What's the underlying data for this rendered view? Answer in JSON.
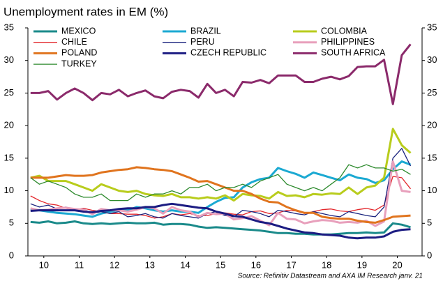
{
  "chart_data": {
    "type": "line",
    "title": "Unemployment rates in EM (%)",
    "source": "Source: Refinitiv Datastream and AXA IM Research janv. 21",
    "x": [
      2010.125,
      2010.375,
      2010.625,
      2010.875,
      2011.125,
      2011.375,
      2011.625,
      2011.875,
      2012.125,
      2012.375,
      2012.625,
      2012.875,
      2013.125,
      2013.375,
      2013.625,
      2013.875,
      2014.125,
      2014.375,
      2014.625,
      2014.875,
      2015.125,
      2015.375,
      2015.625,
      2015.875,
      2016.125,
      2016.375,
      2016.625,
      2016.875,
      2017.125,
      2017.375,
      2017.625,
      2017.875,
      2018.125,
      2018.375,
      2018.625,
      2018.875,
      2019.125,
      2019.375,
      2019.625,
      2019.875,
      2020.125,
      2020.375,
      2020.625,
      2020.875
    ],
    "xlim": [
      2010.05,
      2021.2
    ],
    "xticks": [
      {
        "value": 2010.5,
        "label": "10"
      },
      {
        "value": 2011.5,
        "label": "11"
      },
      {
        "value": 2012.5,
        "label": "12"
      },
      {
        "value": 2013.5,
        "label": "13"
      },
      {
        "value": 2014.5,
        "label": "14"
      },
      {
        "value": 2015.5,
        "label": "15"
      },
      {
        "value": 2016.5,
        "label": "16"
      },
      {
        "value": 2017.5,
        "label": "17"
      },
      {
        "value": 2018.5,
        "label": "18"
      },
      {
        "value": 2019.5,
        "label": "19"
      },
      {
        "value": 2020.5,
        "label": "20"
      }
    ],
    "ylim": [
      0,
      35
    ],
    "yticks": [
      0,
      5,
      10,
      15,
      20,
      25,
      30,
      35
    ],
    "y2lim": [
      0,
      35
    ],
    "y2ticks": [
      0,
      5,
      10,
      15,
      20,
      25,
      30,
      35
    ],
    "series": [
      {
        "name": "MEXICO",
        "color": "#1a8a8a",
        "line_width": 3,
        "values": [
          5.2,
          5.1,
          5.3,
          5.0,
          5.1,
          5.3,
          5.0,
          4.9,
          5.0,
          4.9,
          5.0,
          5.1,
          5.0,
          5.0,
          5.1,
          4.8,
          4.9,
          4.9,
          4.8,
          4.5,
          4.3,
          4.4,
          4.3,
          4.2,
          4.1,
          4.0,
          3.9,
          3.7,
          3.5,
          3.5,
          3.4,
          3.4,
          3.3,
          3.3,
          3.3,
          3.4,
          3.5,
          3.5,
          3.6,
          3.5,
          3.6,
          5.0,
          4.8,
          4.4
        ]
      },
      {
        "name": "BRAZIL",
        "color": "#1ba9d2",
        "line_width": 3,
        "values": [
          7.2,
          7.0,
          6.8,
          6.6,
          6.5,
          6.4,
          6.2,
          6.0,
          6.5,
          6.8,
          7.0,
          7.0,
          7.5,
          7.3,
          7.0,
          6.8,
          7.0,
          6.8,
          6.8,
          6.6,
          7.5,
          8.3,
          8.9,
          9.0,
          10.5,
          11.3,
          11.8,
          12.0,
          13.5,
          13.0,
          12.6,
          12.0,
          12.8,
          12.4,
          12.0,
          11.6,
          12.5,
          12.0,
          11.8,
          11.2,
          11.6,
          13.3,
          14.5,
          14.0
        ]
      },
      {
        "name": "COLOMBIA",
        "color": "#b8cc1c",
        "line_width": 3,
        "values": [
          12.0,
          12.3,
          11.5,
          11.5,
          11.5,
          11.0,
          10.5,
          10.0,
          11.0,
          10.5,
          10.0,
          9.8,
          10.0,
          9.5,
          9.3,
          9.2,
          9.5,
          9.0,
          9.0,
          8.8,
          9.0,
          8.8,
          9.3,
          8.5,
          9.5,
          9.3,
          9.2,
          8.8,
          9.8,
          9.2,
          9.3,
          9.0,
          9.5,
          9.4,
          9.6,
          9.5,
          10.5,
          9.5,
          10.5,
          10.8,
          12.0,
          19.5,
          17.0,
          15.8
        ]
      },
      {
        "name": "CHILE",
        "color": "#e3262b",
        "line_width": 1.3,
        "values": [
          9.2,
          8.5,
          8.0,
          7.8,
          7.3,
          7.1,
          7.3,
          7.0,
          6.8,
          6.5,
          6.5,
          6.4,
          6.4,
          6.2,
          5.8,
          6.0,
          6.5,
          6.3,
          6.5,
          6.2,
          6.2,
          6.5,
          6.6,
          6.4,
          6.3,
          6.8,
          6.9,
          6.5,
          6.6,
          7.0,
          6.9,
          6.5,
          6.8,
          7.1,
          7.2,
          6.9,
          6.8,
          7.1,
          7.3,
          7.0,
          7.8,
          12.2,
          12.0,
          10.3
        ]
      },
      {
        "name": "PERU",
        "color": "#1a237e",
        "line_width": 1.3,
        "values": [
          8.0,
          7.5,
          7.8,
          7.2,
          7.5,
          7.0,
          7.2,
          6.5,
          6.8,
          6.5,
          6.8,
          6.0,
          6.2,
          6.5,
          6.0,
          5.8,
          6.5,
          6.2,
          6.0,
          5.8,
          6.5,
          6.8,
          6.2,
          6.0,
          7.0,
          6.8,
          6.5,
          6.0,
          7.0,
          6.8,
          6.5,
          6.3,
          6.8,
          6.5,
          6.2,
          6.0,
          6.8,
          6.5,
          6.2,
          6.0,
          7.5,
          15.0,
          16.5,
          13.8
        ]
      },
      {
        "name": "PHILIPPINES",
        "color": "#e8a0bc",
        "line_width": 3,
        "values": [
          7.3,
          7.0,
          7.1,
          7.3,
          7.4,
          7.2,
          7.1,
          6.4,
          7.2,
          7.0,
          7.0,
          6.8,
          7.1,
          7.5,
          7.3,
          6.5,
          7.5,
          7.0,
          6.8,
          6.0,
          6.6,
          6.4,
          6.5,
          5.6,
          5.8,
          6.1,
          5.4,
          4.7,
          6.6,
          5.7,
          5.6,
          5.0,
          5.3,
          5.5,
          5.4,
          5.1,
          5.2,
          5.1,
          5.4,
          4.6,
          5.3,
          14.5,
          10.0,
          9.8
        ]
      },
      {
        "name": "POLAND",
        "color": "#e0741e",
        "line_width": 3,
        "values": [
          12.0,
          12.0,
          12.0,
          12.2,
          12.4,
          12.3,
          12.3,
          12.4,
          12.8,
          13.0,
          13.2,
          13.3,
          13.6,
          13.5,
          13.3,
          13.2,
          13.0,
          12.5,
          12.0,
          11.4,
          11.5,
          11.0,
          10.5,
          10.0,
          10.0,
          9.5,
          8.8,
          8.3,
          8.2,
          7.5,
          7.0,
          6.6,
          6.6,
          6.0,
          5.8,
          5.7,
          5.7,
          5.4,
          5.2,
          5.1,
          5.5,
          6.0,
          6.1,
          6.2
        ]
      },
      {
        "name": "CZECH REPUBLIC",
        "color": "#1c1c82",
        "line_width": 3,
        "values": [
          6.9,
          7.0,
          7.0,
          7.0,
          7.0,
          7.0,
          6.8,
          6.7,
          6.9,
          7.0,
          7.2,
          7.3,
          7.3,
          7.5,
          7.5,
          7.8,
          8.0,
          7.8,
          7.6,
          7.4,
          7.3,
          6.8,
          6.5,
          6.1,
          6.0,
          5.6,
          5.2,
          5.0,
          4.6,
          4.2,
          3.9,
          3.6,
          3.5,
          3.3,
          3.2,
          3.1,
          2.8,
          2.7,
          2.8,
          2.8,
          3.0,
          3.7,
          4.0,
          4.1
        ]
      },
      {
        "name": "SOUTH AFRICA",
        "color": "#8b2a6b",
        "line_width": 3,
        "values": [
          25.0,
          25.0,
          25.3,
          24.0,
          25.0,
          25.7,
          25.0,
          23.9,
          25.0,
          24.8,
          25.5,
          24.5,
          25.0,
          25.4,
          24.5,
          24.2,
          25.2,
          25.5,
          25.3,
          24.3,
          26.4,
          25.0,
          25.5,
          24.5,
          26.7,
          26.6,
          27.0,
          26.5,
          27.7,
          27.7,
          27.7,
          26.7,
          26.7,
          27.2,
          27.5,
          27.1,
          27.6,
          29.0,
          29.1,
          29.1,
          30.1,
          23.3,
          30.8,
          32.5
        ]
      },
      {
        "name": "TURKEY",
        "color": "#2d8a2d",
        "line_width": 1.3,
        "values": [
          12.0,
          11.0,
          11.5,
          11.0,
          10.5,
          9.5,
          9.0,
          9.0,
          9.5,
          8.5,
          8.5,
          8.5,
          9.5,
          9.0,
          9.5,
          9.5,
          10.0,
          9.5,
          10.5,
          10.5,
          11.0,
          10.0,
          10.5,
          10.5,
          11.0,
          10.5,
          11.5,
          12.0,
          12.5,
          11.0,
          10.5,
          10.0,
          10.5,
          10.0,
          11.0,
          12.0,
          14.0,
          13.5,
          14.0,
          13.5,
          13.5,
          13.0,
          13.3,
          12.5
        ]
      }
    ],
    "legend_columns": 3
  }
}
